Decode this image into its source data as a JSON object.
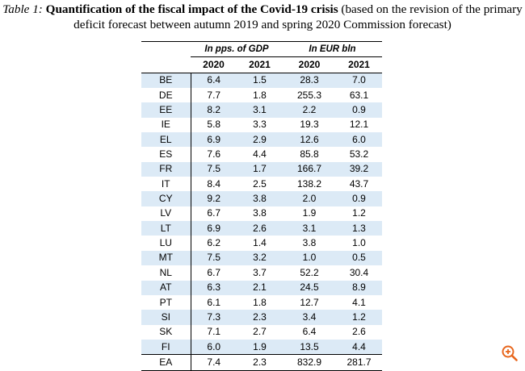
{
  "caption": {
    "label": "Table 1:",
    "title": "Quantification of the fiscal impact of the Covid-19 crisis",
    "note": "(based on the revision of the primary deficit forecast between autumn 2019 and spring 2020 Commission forecast)"
  },
  "table": {
    "group_headers": [
      "In pps. of GDP",
      "In EUR bln"
    ],
    "year_headers": [
      "2020",
      "2021",
      "2020",
      "2021"
    ],
    "rows": [
      [
        "BE",
        "6.4",
        "1.5",
        "28.3",
        "7.0"
      ],
      [
        "DE",
        "7.7",
        "1.8",
        "255.3",
        "63.1"
      ],
      [
        "EE",
        "8.2",
        "3.1",
        "2.2",
        "0.9"
      ],
      [
        "IE",
        "5.8",
        "3.3",
        "19.3",
        "12.1"
      ],
      [
        "EL",
        "6.9",
        "2.9",
        "12.6",
        "6.0"
      ],
      [
        "ES",
        "7.6",
        "4.4",
        "85.8",
        "53.2"
      ],
      [
        "FR",
        "7.5",
        "1.7",
        "166.7",
        "39.2"
      ],
      [
        "IT",
        "8.4",
        "2.5",
        "138.2",
        "43.7"
      ],
      [
        "CY",
        "9.2",
        "3.8",
        "2.0",
        "0.9"
      ],
      [
        "LV",
        "6.7",
        "3.8",
        "1.9",
        "1.2"
      ],
      [
        "LT",
        "6.9",
        "2.6",
        "3.1",
        "1.3"
      ],
      [
        "LU",
        "6.2",
        "1.4",
        "3.8",
        "1.0"
      ],
      [
        "MT",
        "7.5",
        "3.2",
        "1.0",
        "0.5"
      ],
      [
        "NL",
        "6.7",
        "3.7",
        "52.2",
        "30.4"
      ],
      [
        "AT",
        "6.3",
        "2.1",
        "24.5",
        "8.9"
      ],
      [
        "PT",
        "6.1",
        "1.8",
        "12.7",
        "4.1"
      ],
      [
        "SI",
        "7.3",
        "2.3",
        "3.4",
        "1.2"
      ],
      [
        "SK",
        "7.1",
        "2.7",
        "6.4",
        "2.6"
      ],
      [
        "FI",
        "6.0",
        "1.9",
        "13.5",
        "4.4"
      ],
      [
        "EA",
        "7.4",
        "2.3",
        "832.9",
        "281.7"
      ]
    ]
  },
  "ui": {
    "zoom_icon": "zoom-in-icon",
    "accent_color": "#e8661c",
    "stripe_color": "#dceaf6"
  }
}
